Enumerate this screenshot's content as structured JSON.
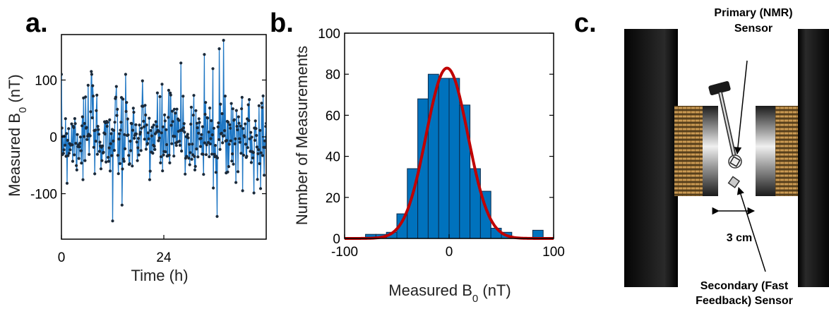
{
  "panels": {
    "a": {
      "letter": "a."
    },
    "b": {
      "letter": "b."
    },
    "c": {
      "letter": "c."
    }
  },
  "colors": {
    "series_line": "#1f77c4",
    "marker": "#1b2a3a",
    "bar_fill": "#0072bd",
    "bar_edge": "#0a2a4a",
    "fit": "#c00000"
  },
  "chart_data": [
    {
      "type": "line",
      "panel": "a",
      "xlabel": "Time (h)",
      "ylabel_main": "Measured B",
      "ylabel_sub": "0",
      "ylabel_unit": " (nT)",
      "xlim": [
        0,
        48
      ],
      "ylim": [
        -180,
        180
      ],
      "xticks": [
        0,
        24
      ],
      "xtick_labels": [
        "0",
        "24"
      ],
      "yticks": [
        100,
        0,
        -100
      ],
      "ytick_labels": [
        "100",
        "0",
        "-100"
      ],
      "grid": false,
      "n_points": 400,
      "noise_std_nT": 40,
      "series": [
        {
          "values_summary": "random fluctuations around 0 nT, approx. ±60 nT typical, extremes ~+170 nT and ~-150 nT"
        }
      ],
      "notable_points": [
        {
          "x": 12.0,
          "y": -148
        },
        {
          "x": 7.0,
          "y": 115
        },
        {
          "x": 33.5,
          "y": 145
        },
        {
          "x": 37.0,
          "y": 155
        },
        {
          "x": 38.0,
          "y": 170
        },
        {
          "x": 36.5,
          "y": -140
        },
        {
          "x": 14.2,
          "y": -120
        },
        {
          "x": 28.0,
          "y": 130
        },
        {
          "x": 35.5,
          "y": 120
        }
      ]
    },
    {
      "type": "bar",
      "panel": "b",
      "xlabel_main": "Measured B",
      "xlabel_sub": "0",
      "xlabel_unit": " (nT)",
      "ylabel": "Number of Measurements",
      "xlim": [
        -100,
        100
      ],
      "ylim": [
        0,
        100
      ],
      "xticks": [
        -100,
        0,
        100
      ],
      "xtick_labels": [
        "-100",
        "0",
        "100"
      ],
      "yticks": [
        0,
        20,
        40,
        60,
        80,
        100
      ],
      "ytick_labels": [
        "0",
        "20",
        "40",
        "60",
        "80",
        "100"
      ],
      "bin_edges": [
        -80,
        -70,
        -60,
        -50,
        -40,
        -30,
        -20,
        -10,
        0,
        10,
        20,
        30,
        40,
        50,
        60,
        70,
        80,
        90
      ],
      "values": [
        2,
        2,
        3,
        12,
        34,
        68,
        80,
        78,
        78,
        65,
        34,
        23,
        5,
        3,
        0,
        0,
        4
      ],
      "fit": {
        "type": "gaussian",
        "mean": -2,
        "sigma": 20,
        "peak": 83
      }
    }
  ],
  "diagram_c": {
    "primary_label_line1": "Primary (NMR)",
    "primary_label_line2": "Sensor",
    "gap_label": "3 cm",
    "secondary_label_line1": "Secondary (Fast",
    "secondary_label_line2": "Feedback) Sensor"
  }
}
